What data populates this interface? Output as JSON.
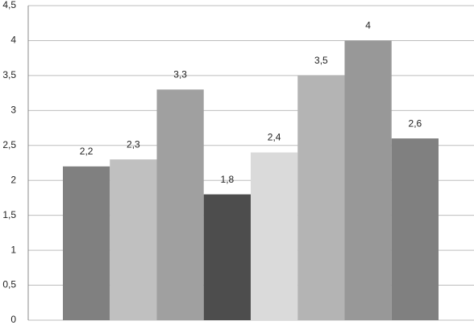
{
  "chart_data": {
    "type": "bar",
    "categories": [
      null,
      null,
      null,
      null,
      null,
      null,
      null,
      null
    ],
    "values": [
      2.2,
      2.3,
      3.3,
      1.8,
      2.4,
      3.5,
      4,
      2.6
    ],
    "value_labels": [
      "2,2",
      "2,3",
      "3,3",
      "1,8",
      "2,4",
      "3,5",
      "4",
      "2,6"
    ],
    "colors": [
      "#808080",
      "#c0c0c0",
      "#a0a0a0",
      "#4d4d4d",
      "#dadada",
      "#b4b4b4",
      "#989898",
      "#808080"
    ],
    "ylim": [
      0,
      4.5
    ],
    "yticks": [
      0,
      {
        "value": 0.5,
        "label": "0,5"
      },
      1,
      {
        "value": 1.5,
        "label": "1,5"
      },
      2,
      {
        "value": 2.5,
        "label": "2,5"
      },
      3,
      {
        "value": 3.5,
        "label": "3,5"
      },
      4,
      {
        "value": 4.5,
        "label": "4,5"
      }
    ],
    "grid": true
  }
}
